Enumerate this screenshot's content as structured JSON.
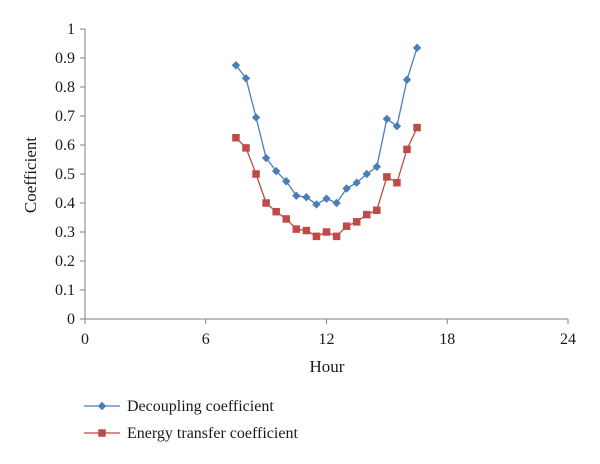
{
  "chart_data": {
    "type": "line",
    "xlabel": "Hour",
    "ylabel": "Coefficient",
    "xlim": [
      0,
      24
    ],
    "ylim": [
      0,
      1
    ],
    "xticks": [
      0,
      6,
      12,
      18,
      24
    ],
    "xtick_labels": [
      "0",
      "6",
      "12",
      "18",
      "24"
    ],
    "yticks": [
      0,
      0.1,
      0.2,
      0.3,
      0.4,
      0.5,
      0.6,
      0.7,
      0.8,
      0.9,
      1
    ],
    "ytick_labels": [
      "0",
      "0.1",
      "0.2",
      "0.3",
      "0.4",
      "0.5",
      "0.6",
      "0.7",
      "0.8",
      "0.9",
      "1"
    ],
    "grid": false,
    "legend_position": "bottom-left",
    "series": [
      {
        "name": "Decoupling coefficient",
        "color": "#4a7ebb",
        "marker": "diamond",
        "x": [
          7.5,
          8,
          8.5,
          9,
          9.5,
          10,
          10.5,
          11,
          11.5,
          12,
          12.5,
          13,
          13.5,
          14,
          14.5,
          15,
          15.5,
          16,
          16.5
        ],
        "y": [
          0.875,
          0.83,
          0.695,
          0.555,
          0.51,
          0.475,
          0.425,
          0.42,
          0.395,
          0.415,
          0.4,
          0.45,
          0.47,
          0.5,
          0.525,
          0.69,
          0.665,
          0.825,
          0.935
        ]
      },
      {
        "name": "Energy transfer coefficient",
        "color": "#be4b48",
        "marker": "square",
        "x": [
          7.5,
          8,
          8.5,
          9,
          9.5,
          10,
          10.5,
          11,
          11.5,
          12,
          12.5,
          13,
          13.5,
          14,
          14.5,
          15,
          15.5,
          16,
          16.5
        ],
        "y": [
          0.625,
          0.59,
          0.5,
          0.4,
          0.37,
          0.345,
          0.31,
          0.305,
          0.285,
          0.3,
          0.285,
          0.32,
          0.335,
          0.36,
          0.375,
          0.49,
          0.47,
          0.585,
          0.66
        ]
      }
    ]
  }
}
